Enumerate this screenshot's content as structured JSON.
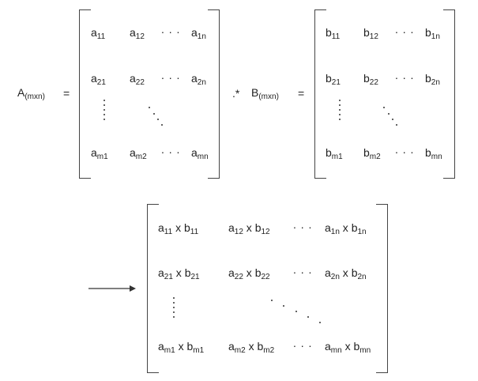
{
  "left": {
    "name": "A",
    "sub": "(mxn)"
  },
  "eq1": "=",
  "op": ".*",
  "right": {
    "name": "B",
    "sub": "(mxn)"
  },
  "eq2": "=",
  "ellipsis": ". . .",
  "matA": [
    [
      {
        "b": "a",
        "s": "11"
      },
      {
        "b": "a",
        "s": "12"
      },
      {
        "b": "a",
        "s": "1n"
      }
    ],
    [
      {
        "b": "a",
        "s": "21"
      },
      {
        "b": "a",
        "s": "22"
      },
      {
        "b": "a",
        "s": "2n"
      }
    ],
    [
      {
        "b": "a",
        "s": "m1"
      },
      {
        "b": "a",
        "s": "m2"
      },
      {
        "b": "a",
        "s": "mn"
      }
    ]
  ],
  "matB": [
    [
      {
        "b": "b",
        "s": "11"
      },
      {
        "b": "b",
        "s": "12"
      },
      {
        "b": "b",
        "s": "1n"
      }
    ],
    [
      {
        "b": "b",
        "s": "21"
      },
      {
        "b": "b",
        "s": "22"
      },
      {
        "b": "b",
        "s": "2n"
      }
    ],
    [
      {
        "b": "b",
        "s": "m1"
      },
      {
        "b": "b",
        "s": "m2"
      },
      {
        "b": "b",
        "s": "mn"
      }
    ]
  ],
  "times": "x",
  "matC": [
    [
      {
        "a": "11",
        "b": "11"
      },
      {
        "a": "12",
        "b": "12"
      },
      {
        "a": "1n",
        "b": "1n"
      }
    ],
    [
      {
        "a": "21",
        "b": "21"
      },
      {
        "a": "22",
        "b": "22"
      },
      {
        "a": "2n",
        "b": "2n"
      }
    ],
    [
      {
        "a": "m1",
        "b": "m1"
      },
      {
        "a": "m2",
        "b": "m2"
      },
      {
        "a": "mn",
        "b": "mn"
      }
    ]
  ]
}
